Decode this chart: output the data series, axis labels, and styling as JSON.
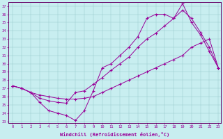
{
  "xlabel": "Windchill (Refroidissement éolien,°C)",
  "bg_color": "#c8eef0",
  "line_color": "#990099",
  "xlim": [
    -0.5,
    23.3
  ],
  "ylim": [
    22.8,
    37.5
  ],
  "xticks": [
    0,
    1,
    2,
    3,
    4,
    5,
    6,
    7,
    8,
    9,
    10,
    11,
    12,
    13,
    14,
    15,
    16,
    17,
    18,
    19,
    20,
    21,
    22,
    23
  ],
  "yticks": [
    23,
    24,
    25,
    26,
    27,
    28,
    29,
    30,
    31,
    32,
    33,
    34,
    35,
    36,
    37
  ],
  "line1_x": [
    0,
    1,
    2,
    3,
    4,
    5,
    6,
    7,
    8,
    9,
    10,
    11,
    12,
    13,
    14,
    15,
    16,
    17,
    18,
    19,
    20,
    21,
    22,
    23
  ],
  "line1_y": [
    27.3,
    27.0,
    26.5,
    25.3,
    24.3,
    24.0,
    23.7,
    23.1,
    24.3,
    26.7,
    29.5,
    30.0,
    31.0,
    32.0,
    33.3,
    35.5,
    36.0,
    36.0,
    35.5,
    37.3,
    35.0,
    33.5,
    31.5,
    29.5
  ],
  "line2_x": [
    0,
    1,
    2,
    3,
    4,
    5,
    6,
    7,
    8,
    9,
    10,
    11,
    12,
    13,
    14,
    15,
    16,
    17,
    18,
    19,
    20,
    21,
    22,
    23
  ],
  "line2_y": [
    27.3,
    27.0,
    26.5,
    26.2,
    26.0,
    25.8,
    25.7,
    25.7,
    25.8,
    26.0,
    26.5,
    27.0,
    27.5,
    28.0,
    28.5,
    29.0,
    29.5,
    30.0,
    30.5,
    31.0,
    32.0,
    32.5,
    33.0,
    29.5
  ],
  "line3_x": [
    0,
    1,
    2,
    3,
    4,
    5,
    6,
    7,
    8,
    9,
    10,
    11,
    12,
    13,
    14,
    15,
    16,
    17,
    18,
    19,
    20,
    21,
    22,
    23
  ],
  "line3_y": [
    27.3,
    27.0,
    26.5,
    25.8,
    25.5,
    25.3,
    25.2,
    26.5,
    26.7,
    27.5,
    28.3,
    29.2,
    30.0,
    30.8,
    32.0,
    33.0,
    33.7,
    34.6,
    35.5,
    36.5,
    35.5,
    33.8,
    32.0,
    29.5
  ]
}
